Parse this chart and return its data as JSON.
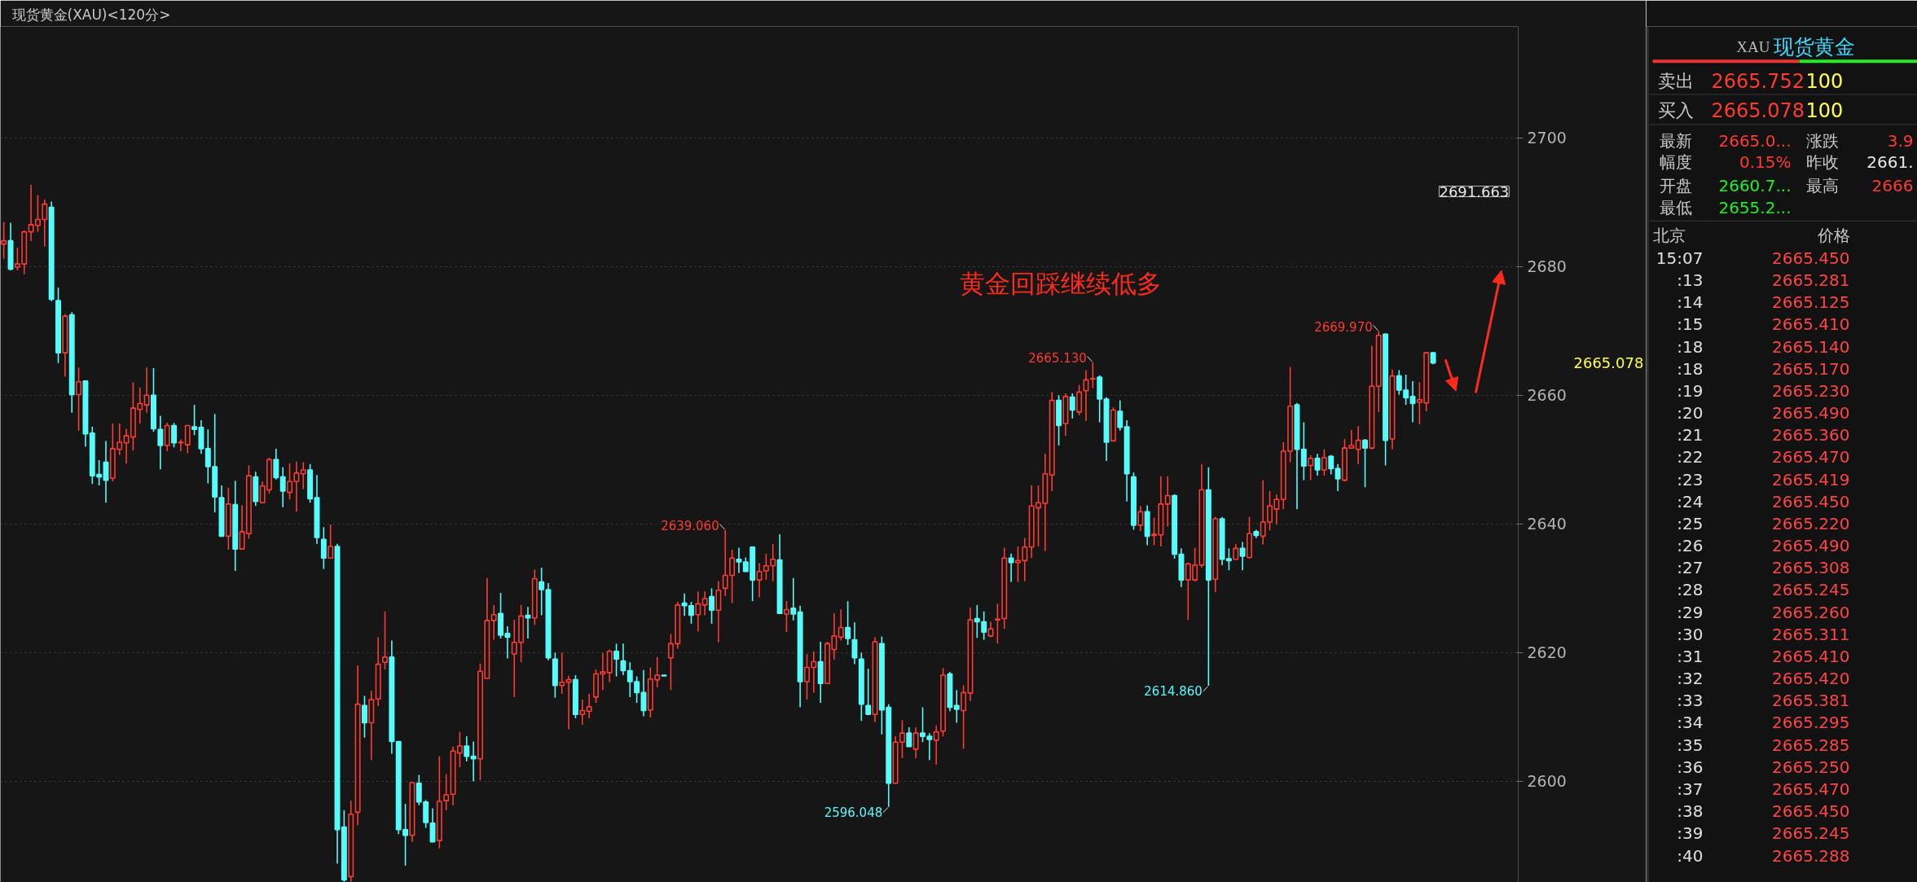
{
  "chart_data": [
    {
      "type": "candlestick",
      "title": "现货黄金(XAU)<120分>",
      "categories": [
        null,
        null,
        null,
        null,
        null,
        null,
        null,
        null,
        null,
        null,
        null,
        null,
        null,
        null,
        null,
        null,
        null,
        null,
        null,
        null,
        null,
        null,
        null,
        null,
        null,
        null,
        null,
        null,
        null,
        null,
        null,
        null,
        null,
        null,
        null,
        null,
        null,
        null,
        null,
        null,
        null,
        null,
        null,
        null,
        null,
        null,
        null,
        null,
        null,
        null,
        null,
        null,
        null,
        null,
        null,
        null,
        null,
        null,
        null,
        null,
        null,
        null,
        null,
        null,
        null,
        null,
        null,
        null,
        null,
        null,
        null,
        null,
        null,
        null,
        null,
        null,
        null,
        null,
        null,
        null,
        null,
        null,
        null,
        null,
        null,
        null,
        null,
        null,
        null,
        null,
        null,
        null,
        null,
        null,
        null,
        null,
        null,
        null,
        null,
        null,
        null,
        null,
        null,
        null,
        null,
        null,
        null,
        null,
        null,
        null,
        null,
        null,
        null,
        null,
        null,
        null,
        null,
        null,
        null,
        null,
        null,
        null,
        null,
        null,
        null,
        null,
        null,
        null,
        null,
        null,
        null,
        null,
        null,
        null,
        null,
        null,
        null,
        null,
        null,
        null,
        null,
        null,
        null,
        null,
        null,
        null,
        null,
        null,
        null,
        null,
        null,
        null,
        null,
        null,
        null,
        null,
        null,
        null,
        null,
        null,
        null,
        null,
        null,
        null,
        null,
        null,
        null,
        null,
        null,
        null,
        null,
        null,
        null,
        null,
        null,
        null,
        null,
        null,
        null,
        null,
        null,
        null,
        null,
        null,
        null,
        null,
        null,
        null,
        null,
        null,
        null,
        null,
        null,
        null,
        null,
        null,
        null,
        null,
        null,
        null,
        null,
        null,
        null,
        null,
        null,
        null,
        null,
        null,
        null,
        null,
        null,
        null,
        null,
        null,
        null,
        null,
        null,
        null,
        null,
        null,
        null,
        null,
        null
      ],
      "ohlc": [
        [
          2683.5,
          2686.9,
          2681.2,
          2684.0
        ],
        [
          2684.0,
          2686.8,
          2679.4,
          2679.6
        ],
        [
          2679.9,
          2682.9,
          2679.4,
          2680.4
        ],
        [
          2680.4,
          2685.6,
          2678.8,
          2685.4
        ],
        [
          2685.4,
          2692.7,
          2684.0,
          2686.5
        ],
        [
          2686.4,
          2691.1,
          2685.4,
          2687.3
        ],
        [
          2687.3,
          2690.4,
          2683.1,
          2689.7
        ],
        [
          2689.2,
          2690.1,
          2674.6,
          2674.9
        ],
        [
          2674.7,
          2676.7,
          2665.0,
          2666.6
        ],
        [
          2666.6,
          2672.6,
          2662.9,
          2672.3
        ],
        [
          2672.5,
          2672.9,
          2657.3,
          2660.1
        ],
        [
          2660.1,
          2664.3,
          2654.5,
          2662.1
        ],
        [
          2662.2,
          2662.2,
          2652.0,
          2654.0
        ],
        [
          2654.1,
          2655.1,
          2646.2,
          2647.5
        ],
        [
          2647.7,
          2649.9,
          2646.0,
          2647.3
        ],
        [
          2649.6,
          2652.9,
          2643.3,
          2646.8
        ],
        [
          2647.1,
          2655.6,
          2646.6,
          2651.7
        ],
        [
          2651.6,
          2655.6,
          2650.7,
          2652.7
        ],
        [
          2652.6,
          2654.8,
          2649.4,
          2653.7
        ],
        [
          2653.5,
          2662.0,
          2651.4,
          2658.0
        ],
        [
          2657.8,
          2661.2,
          2655.6,
          2658.7
        ],
        [
          2658.5,
          2664.3,
          2657.3,
          2660.0
        ],
        [
          2660.0,
          2664.2,
          2654.3,
          2654.8
        ],
        [
          2654.7,
          2656.8,
          2648.5,
          2652.2
        ],
        [
          2652.2,
          2655.7,
          2651.3,
          2655.3
        ],
        [
          2655.3,
          2655.7,
          2651.9,
          2652.6
        ],
        [
          2652.6,
          2653.1,
          2651.3,
          2652.7
        ],
        [
          2652.3,
          2655.3,
          2651.0,
          2655.3
        ],
        [
          2655.1,
          2658.5,
          2653.8,
          2654.7
        ],
        [
          2655.0,
          2656.1,
          2650.9,
          2651.7
        ],
        [
          2651.7,
          2654.7,
          2646.3,
          2648.9
        ],
        [
          2648.9,
          2657.1,
          2641.8,
          2644.2
        ],
        [
          2644.1,
          2646.0,
          2638.1,
          2638.1
        ],
        [
          2638.1,
          2645.6,
          2636.0,
          2643.1
        ],
        [
          2643.0,
          2646.7,
          2632.7,
          2636.1
        ],
        [
          2636.1,
          2642.9,
          2636.0,
          2638.8
        ],
        [
          2638.5,
          2649.1,
          2637.7,
          2647.5
        ],
        [
          2647.3,
          2648.1,
          2642.8,
          2643.5
        ],
        [
          2643.3,
          2646.6,
          2643.3,
          2645.9
        ],
        [
          2645.3,
          2650.3,
          2644.7,
          2650.0
        ],
        [
          2650.0,
          2651.7,
          2646.9,
          2647.2
        ],
        [
          2647.3,
          2648.8,
          2642.6,
          2645.1
        ],
        [
          2644.9,
          2649.4,
          2643.8,
          2646.6
        ],
        [
          2646.6,
          2649.7,
          2641.9,
          2647.9
        ],
        [
          2647.8,
          2649.6,
          2645.4,
          2648.4
        ],
        [
          2648.4,
          2649.3,
          2643.3,
          2643.9
        ],
        [
          2644.1,
          2647.6,
          2636.9,
          2637.9
        ],
        [
          2637.6,
          2639.5,
          2633.0,
          2634.7
        ],
        [
          2634.7,
          2639.9,
          2634.7,
          2636.5
        ],
        [
          2636.5,
          2636.9,
          2587.2,
          2592.5
        ],
        [
          2592.9,
          2595.5,
          2584.4,
          2584.7
        ],
        [
          2585.2,
          2597.0,
          2584.4,
          2594.9
        ],
        [
          2595.2,
          2618.0,
          2593.2,
          2612.0
        ],
        [
          2611.8,
          2613.3,
          2606.8,
          2609.1
        ],
        [
          2609.1,
          2614.1,
          2603.3,
          2612.7
        ],
        [
          2612.8,
          2622.4,
          2611.7,
          2618.2
        ],
        [
          2618.5,
          2626.4,
          2617.4,
          2619.3
        ],
        [
          2619.3,
          2621.9,
          2604.3,
          2606.2
        ],
        [
          2606.2,
          2606.2,
          2591.8,
          2592.5
        ],
        [
          2592.5,
          2596.5,
          2586.9,
          2591.6
        ],
        [
          2591.6,
          2599.8,
          2590.6,
          2599.8
        ],
        [
          2599.7,
          2601.0,
          2596.3,
          2596.8
        ],
        [
          2596.8,
          2597.1,
          2592.8,
          2593.6
        ],
        [
          2593.5,
          2595.8,
          2590.6,
          2590.6
        ],
        [
          2590.8,
          2603.9,
          2589.6,
          2596.9
        ],
        [
          2597.0,
          2601.1,
          2595.5,
          2597.9
        ],
        [
          2598.0,
          2605.4,
          2596.3,
          2604.7
        ],
        [
          2604.4,
          2607.7,
          2602.2,
          2605.5
        ],
        [
          2605.5,
          2607.0,
          2603.1,
          2603.9
        ],
        [
          2603.9,
          2606.2,
          2600.0,
          2603.5
        ],
        [
          2603.5,
          2618.3,
          2600.2,
          2617.1
        ],
        [
          2616.0,
          2631.6,
          2616.0,
          2625.0
        ],
        [
          2625.0,
          2627.4,
          2622.0,
          2625.9
        ],
        [
          2626.1,
          2629.3,
          2622.2,
          2622.7
        ],
        [
          2623.0,
          2624.1,
          2619.1,
          2622.4
        ],
        [
          2619.8,
          2625.1,
          2613.1,
          2621.6
        ],
        [
          2621.6,
          2627.4,
          2618.5,
          2625.7
        ],
        [
          2625.8,
          2627.1,
          2622.2,
          2625.4
        ],
        [
          2625.4,
          2632.9,
          2624.3,
          2631.5
        ],
        [
          2631.0,
          2633.2,
          2625.8,
          2629.8
        ],
        [
          2629.8,
          2630.8,
          2618.8,
          2619.2
        ],
        [
          2619.0,
          2620.0,
          2613.0,
          2614.9
        ],
        [
          2614.9,
          2620.0,
          2613.6,
          2615.4
        ],
        [
          2615.4,
          2616.4,
          2608.1,
          2615.8
        ],
        [
          2615.8,
          2616.5,
          2609.8,
          2610.4
        ],
        [
          2610.4,
          2612.7,
          2608.8,
          2611.0
        ],
        [
          2610.9,
          2613.6,
          2609.8,
          2611.6
        ],
        [
          2613.1,
          2617.4,
          2612.2,
          2616.7
        ],
        [
          2616.7,
          2620.0,
          2614.2,
          2617.0
        ],
        [
          2616.9,
          2620.5,
          2615.4,
          2620.2
        ],
        [
          2620.2,
          2621.4,
          2616.3,
          2619.0
        ],
        [
          2618.7,
          2621.4,
          2616.5,
          2617.2
        ],
        [
          2617.2,
          2618.5,
          2613.1,
          2615.5
        ],
        [
          2615.5,
          2616.3,
          2612.2,
          2613.8
        ],
        [
          2613.8,
          2617.3,
          2610.1,
          2611.0
        ],
        [
          2611.1,
          2617.7,
          2609.9,
          2615.9
        ],
        [
          2615.8,
          2619.3,
          2614.6,
          2616.5
        ],
        [
          2616.5,
          2616.5,
          2616.4,
          2616.4
        ],
        [
          2619.2,
          2622.9,
          2614.2,
          2621.4
        ],
        [
          2621.4,
          2627.9,
          2620.6,
          2627.4
        ],
        [
          2627.7,
          2629.2,
          2625.7,
          2627.3
        ],
        [
          2627.3,
          2627.9,
          2624.5,
          2625.8
        ],
        [
          2625.9,
          2629.5,
          2623.3,
          2627.6
        ],
        [
          2627.4,
          2629.5,
          2625.8,
          2628.4
        ],
        [
          2628.7,
          2630.0,
          2624.5,
          2626.6
        ],
        [
          2626.6,
          2631.1,
          2621.6,
          2629.7
        ],
        [
          2630.0,
          2639.06,
          2628.8,
          2632.0
        ],
        [
          2632.0,
          2636.0,
          2627.7,
          2634.7
        ],
        [
          2634.5,
          2636.3,
          2632.4,
          2634.1
        ],
        [
          2634.1,
          2634.8,
          2632.6,
          2632.6
        ],
        [
          2636.4,
          2636.5,
          2628.0,
          2631.3
        ],
        [
          2631.3,
          2633.9,
          2628.6,
          2632.6
        ],
        [
          2632.7,
          2635.4,
          2631.3,
          2633.5
        ],
        [
          2633.5,
          2636.9,
          2631.1,
          2634.5
        ],
        [
          2634.4,
          2638.4,
          2626.1,
          2626.1
        ],
        [
          2626.0,
          2628.0,
          2623.2,
          2626.7
        ],
        [
          2626.9,
          2631.6,
          2625.0,
          2626.0
        ],
        [
          2626.3,
          2627.3,
          2611.5,
          2615.5
        ],
        [
          2615.5,
          2619.8,
          2612.7,
          2617.7
        ],
        [
          2617.7,
          2620.2,
          2613.8,
          2618.6
        ],
        [
          2618.6,
          2621.7,
          2612.2,
          2615.2
        ],
        [
          2615.2,
          2621.7,
          2615.2,
          2621.4
        ],
        [
          2620.5,
          2626.1,
          2618.9,
          2622.6
        ],
        [
          2622.4,
          2626.7,
          2621.9,
          2623.9
        ],
        [
          2623.9,
          2628.0,
          2621.2,
          2622.2
        ],
        [
          2622.0,
          2624.7,
          2618.2,
          2619.2
        ],
        [
          2619.0,
          2620.0,
          2609.4,
          2612.0
        ],
        [
          2611.8,
          2617.5,
          2610.4,
          2610.4
        ],
        [
          2610.4,
          2622.4,
          2609.2,
          2621.7
        ],
        [
          2621.4,
          2622.5,
          2607.3,
          2611.1
        ],
        [
          2611.5,
          2612.0,
          2596.048,
          2599.7
        ],
        [
          2599.7,
          2607.0,
          2599.7,
          2606.1
        ],
        [
          2606.1,
          2609.5,
          2603.6,
          2607.5
        ],
        [
          2607.5,
          2608.4,
          2605.4,
          2605.4
        ],
        [
          2605.0,
          2608.4,
          2603.6,
          2607.5
        ],
        [
          2607.5,
          2611.5,
          2606.1,
          2607.0
        ],
        [
          2607.0,
          2607.5,
          2603.3,
          2606.5
        ],
        [
          2606.4,
          2608.7,
          2602.6,
          2607.7
        ],
        [
          2607.8,
          2617.6,
          2607.0,
          2616.5
        ],
        [
          2616.7,
          2617.0,
          2610.9,
          2611.5
        ],
        [
          2611.8,
          2614.2,
          2609.1,
          2611.2
        ],
        [
          2611.0,
          2614.9,
          2605.1,
          2613.8
        ],
        [
          2613.7,
          2627.0,
          2612.5,
          2625.1
        ],
        [
          2625.3,
          2627.4,
          2622.3,
          2624.8
        ],
        [
          2624.8,
          2626.4,
          2622.0,
          2623.2
        ],
        [
          2622.6,
          2624.8,
          2622.4,
          2623.7
        ],
        [
          2625.1,
          2627.6,
          2621.4,
          2625.2
        ],
        [
          2625.3,
          2636.3,
          2623.7,
          2634.7
        ],
        [
          2634.7,
          2635.4,
          2631.0,
          2634.0
        ],
        [
          2634.0,
          2636.5,
          2631.0,
          2634.3
        ],
        [
          2634.3,
          2637.8,
          2631.1,
          2636.4
        ],
        [
          2636.4,
          2646.0,
          2634.7,
          2642.8
        ],
        [
          2642.5,
          2646.0,
          2636.5,
          2643.3
        ],
        [
          2643.2,
          2650.9,
          2635.8,
          2647.8
        ],
        [
          2647.6,
          2660.5,
          2645.1,
          2659.2
        ],
        [
          2659.2,
          2660.0,
          2652.2,
          2655.3
        ],
        [
          2655.6,
          2660.3,
          2653.7,
          2659.8
        ],
        [
          2659.7,
          2660.3,
          2656.4,
          2657.7
        ],
        [
          2657.4,
          2661.6,
          2656.9,
          2660.5
        ],
        [
          2660.7,
          2663.9,
          2656.0,
          2662.4
        ],
        [
          2662.5,
          2665.13,
          2661.1,
          2662.6
        ],
        [
          2662.8,
          2663.1,
          2655.8,
          2659.4
        ],
        [
          2659.4,
          2659.7,
          2649.8,
          2652.7
        ],
        [
          2652.9,
          2658.1,
          2652.9,
          2657.7
        ],
        [
          2657.5,
          2659.2,
          2654.5,
          2655.0
        ],
        [
          2655.1,
          2656.1,
          2643.5,
          2647.8
        ],
        [
          2647.3,
          2648.0,
          2639.1,
          2639.8
        ],
        [
          2639.8,
          2642.8,
          2638.9,
          2641.9
        ],
        [
          2641.9,
          2642.9,
          2636.7,
          2638.1
        ],
        [
          2638.2,
          2641.0,
          2636.7,
          2638.4
        ],
        [
          2638.3,
          2647.4,
          2636.5,
          2643.1
        ],
        [
          2643.1,
          2647.4,
          2639.6,
          2644.4
        ],
        [
          2644.4,
          2644.6,
          2634.6,
          2635.3
        ],
        [
          2635.3,
          2636.2,
          2630.2,
          2631.3
        ],
        [
          2631.3,
          2634.0,
          2625.1,
          2633.8
        ],
        [
          2631.3,
          2636.3,
          2631.1,
          2633.6
        ],
        [
          2633.6,
          2649.3,
          2633.2,
          2645.3
        ],
        [
          2645.3,
          2648.8,
          2614.86,
          2631.3
        ],
        [
          2631.4,
          2641.1,
          2629.4,
          2640.8
        ],
        [
          2640.8,
          2641.1,
          2633.6,
          2634.5
        ],
        [
          2634.6,
          2636.2,
          2632.8,
          2634.3
        ],
        [
          2634.5,
          2636.9,
          2634.5,
          2636.2
        ],
        [
          2636.2,
          2637.2,
          2632.8,
          2635.0
        ],
        [
          2634.8,
          2641.1,
          2634.6,
          2638.5
        ],
        [
          2638.8,
          2639.1,
          2637.8,
          2638.2
        ],
        [
          2638.1,
          2646.8,
          2636.8,
          2640.3
        ],
        [
          2640.3,
          2645.1,
          2639.0,
          2642.8
        ],
        [
          2642.3,
          2644.6,
          2639.9,
          2643.8
        ],
        [
          2643.8,
          2652.7,
          2642.3,
          2651.3
        ],
        [
          2651.3,
          2664.4,
          2649.6,
          2658.3
        ],
        [
          2658.5,
          2658.8,
          2642.3,
          2651.6
        ],
        [
          2651.6,
          2655.8,
          2646.8,
          2649.0
        ],
        [
          2649.1,
          2650.7,
          2646.8,
          2650.2
        ],
        [
          2650.2,
          2650.9,
          2647.5,
          2648.4
        ],
        [
          2648.4,
          2651.6,
          2647.5,
          2650.3
        ],
        [
          2650.5,
          2650.7,
          2647.7,
          2648.6
        ],
        [
          2648.6,
          2649.3,
          2645.1,
          2647.0
        ],
        [
          2646.8,
          2653.2,
          2646.6,
          2651.8
        ],
        [
          2651.8,
          2654.6,
          2651.8,
          2652.2
        ],
        [
          2651.6,
          2655.2,
          2649.3,
          2653.0
        ],
        [
          2653.0,
          2653.2,
          2645.7,
          2651.8
        ],
        [
          2651.8,
          2667.7,
          2651.6,
          2661.4
        ],
        [
          2661.4,
          2669.97,
          2657.4,
          2669.3
        ],
        [
          2669.5,
          2669.6,
          2649.1,
          2653.0
        ],
        [
          2653.2,
          2664.0,
          2651.6,
          2663.0
        ],
        [
          2663.0,
          2663.9,
          2660.1,
          2660.8
        ],
        [
          2660.8,
          2663.2,
          2658.5,
          2659.6
        ],
        [
          2659.8,
          2662.2,
          2655.8,
          2658.7
        ],
        [
          2658.9,
          2662.0,
          2655.5,
          2659.3
        ],
        [
          2658.8,
          2666.7,
          2657.5,
          2666.6
        ],
        [
          2666.6,
          2666.7,
          2664.8,
          2665.0
        ],
        null,
        null,
        null,
        null,
        null,
        null,
        null,
        null,
        null,
        null,
        null,
        null
      ],
      "ylim": [
        2584.3,
        2717.3
      ],
      "yticks": [
        2600,
        2620,
        2640,
        2660,
        2680,
        2700
      ],
      "grid": "y",
      "tick_labels": "y",
      "annotations": [
        "黄金回踩继续低多",
        "2639.060",
        "2596.048",
        "2665.130",
        "2614.860",
        "2669.970",
        "2691.663",
        "2665.078"
      ]
    },
    {
      "type": "other",
      "title": "现货黄金",
      "subtitle": "XAU",
      "annotations": [
        "卖出",
        "2665.752",
        "100",
        "买入",
        "2665.078",
        "100",
        "最新",
        "2665.0...",
        "涨跌",
        "3.9",
        "幅度",
        "0.15%",
        "昨收",
        "2661.",
        "开盘",
        "2660.7...",
        "最高",
        "2666",
        "最低",
        "2655.2...",
        "北京",
        "价格",
        "15:07",
        "2665.450",
        ":13",
        "2665.281",
        ":14",
        "2665.125",
        ":15",
        "2665.410",
        ":18",
        "2665.140",
        ":18",
        "2665.170",
        ":19",
        "2665.230",
        ":20",
        "2665.490",
        ":21",
        "2665.360",
        ":22",
        "2665.470",
        ":23",
        "2665.419",
        ":24",
        "2665.450",
        ":25",
        "2665.220",
        ":26",
        "2665.490",
        ":27",
        "2665.308",
        ":28",
        "2665.245",
        ":29",
        "2665.260",
        ":30",
        "2665.311",
        ":31",
        "2665.410",
        ":32",
        "2665.420",
        ":33",
        "2665.381",
        ":34",
        "2665.295",
        ":35",
        "2665.285",
        ":36",
        "2665.250",
        ":37",
        "2665.470",
        ":38",
        "2665.450",
        ":39",
        "2665.245",
        ":40",
        "2665.288"
      ]
    }
  ]
}
